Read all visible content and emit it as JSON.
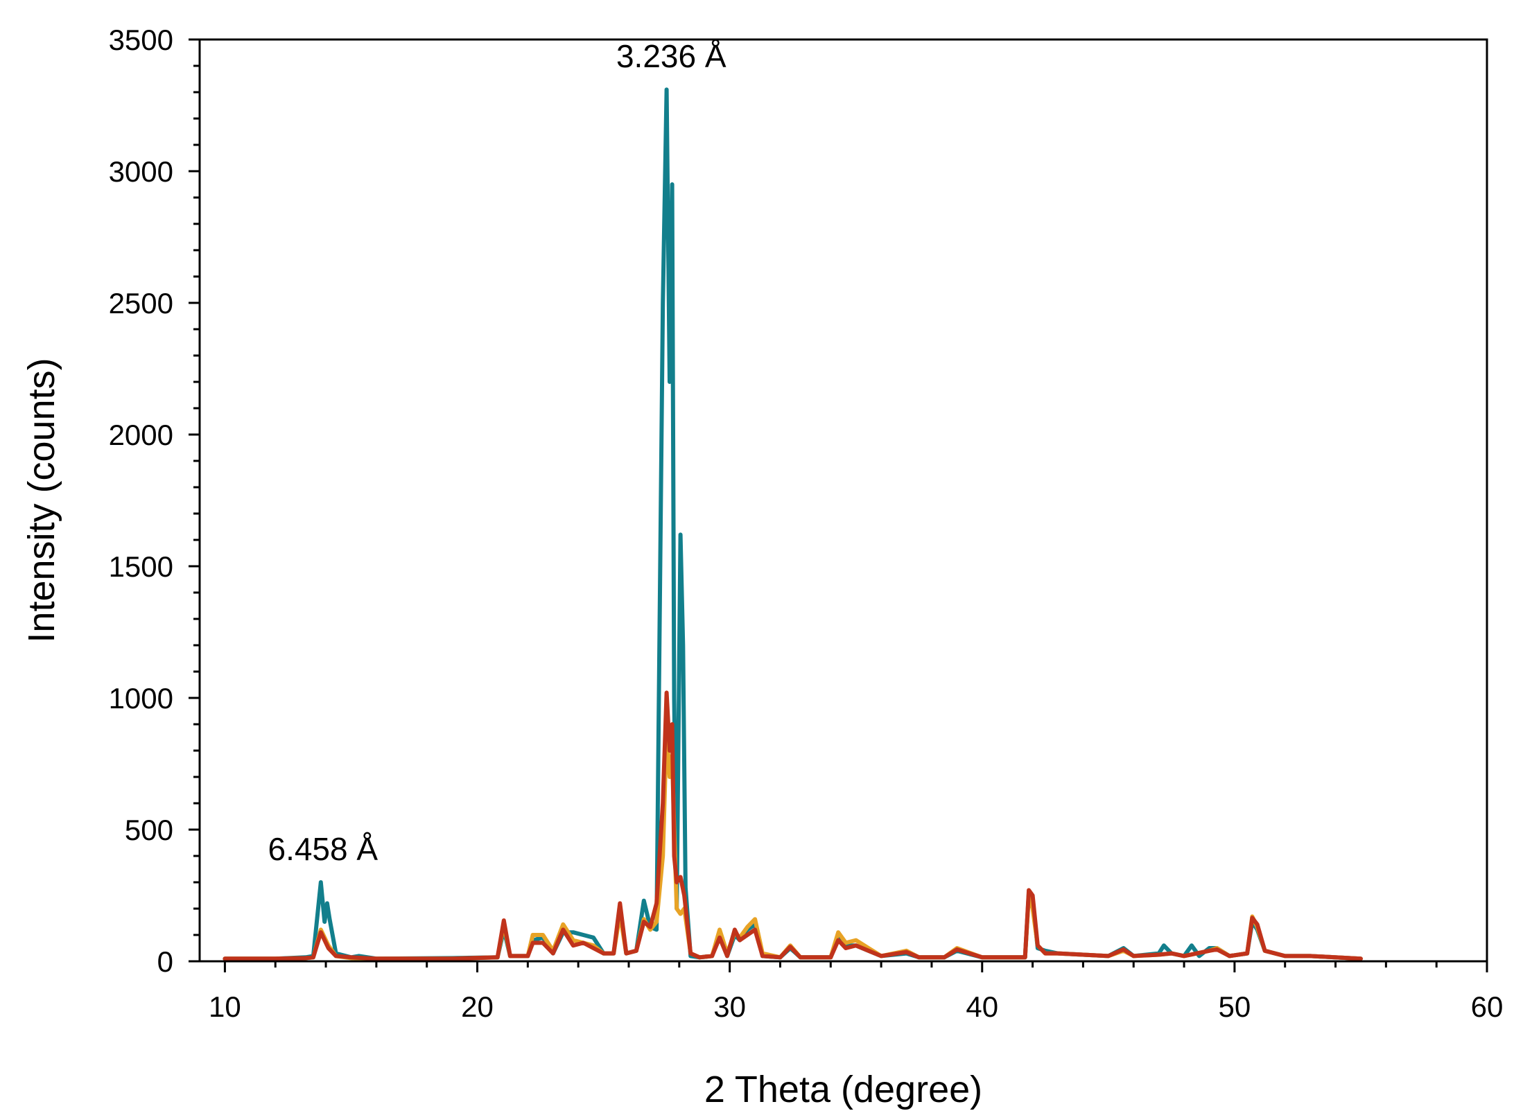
{
  "chart_data": {
    "type": "line",
    "title": "",
    "xlabel": "2 Theta (degree)",
    "ylabel": "Intensity (counts)",
    "xlim": [
      9,
      60
    ],
    "ylim": [
      0,
      3500
    ],
    "xticks": [
      10,
      20,
      30,
      40,
      50,
      60
    ],
    "yticks": [
      0,
      500,
      1000,
      1500,
      2000,
      2500,
      3000,
      3500
    ],
    "grid": false,
    "legend": "none",
    "annotations": [
      {
        "text": "3.236 Å",
        "x": 27.6,
        "y": 3310
      },
      {
        "text": "6.458 Å",
        "x": 13.8,
        "y": 300
      }
    ],
    "series": [
      {
        "color": "#127f8c",
        "x": [
          10,
          12,
          13.2,
          13.5,
          13.8,
          13.95,
          14.05,
          14.15,
          14.4,
          15,
          15.3,
          16,
          19,
          20.8,
          21.05,
          21.3,
          22,
          22.2,
          22.6,
          23,
          23.4,
          23.8,
          24.2,
          24.6,
          25,
          25.4,
          25.65,
          25.9,
          26.3,
          26.6,
          26.85,
          27.1,
          27.35,
          27.5,
          27.62,
          27.72,
          27.8,
          27.9,
          28.05,
          28.15,
          28.25,
          28.45,
          28.8,
          29.3,
          29.6,
          29.9,
          30.2,
          30.4,
          30.7,
          31,
          31.3,
          32,
          32.4,
          32.8,
          34,
          34.3,
          34.6,
          35,
          35.5,
          36,
          37,
          37.5,
          38.5,
          39,
          40,
          41.7,
          41.85,
          42,
          42.2,
          42.5,
          43,
          45,
          45.6,
          46,
          47,
          47.2,
          47.5,
          48,
          48.3,
          48.6,
          49,
          49.3,
          49.8,
          50.5,
          50.7,
          50.9,
          51.2,
          52,
          53,
          55
        ],
        "y": [
          10,
          10,
          15,
          20,
          300,
          150,
          220,
          160,
          30,
          15,
          20,
          10,
          12,
          15,
          120,
          20,
          20,
          80,
          90,
          30,
          110,
          110,
          100,
          90,
          30,
          30,
          200,
          30,
          40,
          230,
          130,
          120,
          2500,
          3310,
          2200,
          2950,
          1000,
          200,
          1620,
          1200,
          280,
          20,
          15,
          20,
          100,
          20,
          100,
          80,
          120,
          140,
          20,
          15,
          50,
          15,
          15,
          90,
          60,
          60,
          40,
          20,
          30,
          15,
          15,
          40,
          15,
          15,
          260,
          230,
          50,
          40,
          30,
          20,
          50,
          20,
          30,
          60,
          30,
          20,
          60,
          20,
          50,
          50,
          20,
          30,
          150,
          120,
          40,
          20,
          20,
          10
        ]
      },
      {
        "color": "#e8a326",
        "x": [
          10,
          12,
          13.2,
          13.5,
          13.8,
          14.1,
          14.4,
          15,
          16,
          19,
          20.8,
          21.05,
          21.3,
          22,
          22.2,
          22.6,
          23,
          23.4,
          23.8,
          24.2,
          24.6,
          25,
          25.4,
          25.65,
          25.9,
          26.3,
          26.6,
          26.85,
          27.1,
          27.35,
          27.5,
          27.62,
          27.72,
          27.8,
          27.9,
          28.05,
          28.2,
          28.45,
          28.8,
          29.3,
          29.6,
          29.9,
          30.2,
          30.4,
          30.7,
          31,
          31.3,
          32,
          32.4,
          32.8,
          34,
          34.3,
          34.6,
          35,
          35.5,
          36,
          37,
          37.5,
          38.5,
          39,
          40,
          41.7,
          41.85,
          42,
          42.2,
          42.5,
          43,
          45,
          45.6,
          46,
          47,
          47.5,
          48,
          49,
          49.3,
          49.8,
          50.5,
          50.7,
          50.9,
          51.2,
          52,
          53,
          55
        ],
        "y": [
          10,
          10,
          12,
          15,
          120,
          60,
          20,
          12,
          10,
          10,
          15,
          140,
          20,
          20,
          100,
          100,
          40,
          140,
          80,
          70,
          60,
          30,
          30,
          180,
          30,
          40,
          160,
          120,
          150,
          400,
          880,
          700,
          780,
          500,
          200,
          180,
          200,
          30,
          15,
          20,
          120,
          30,
          110,
          90,
          130,
          160,
          30,
          15,
          60,
          15,
          15,
          110,
          70,
          80,
          50,
          20,
          40,
          15,
          15,
          50,
          15,
          15,
          250,
          200,
          60,
          30,
          30,
          20,
          40,
          20,
          25,
          30,
          20,
          40,
          50,
          20,
          30,
          170,
          130,
          40,
          20,
          20,
          10
        ]
      },
      {
        "color": "#c0331b",
        "x": [
          10,
          12,
          13.2,
          13.5,
          13.8,
          14.1,
          14.4,
          15,
          16,
          19,
          20.8,
          21.05,
          21.3,
          22,
          22.2,
          22.6,
          23,
          23.4,
          23.8,
          24.2,
          24.6,
          25,
          25.4,
          25.65,
          25.9,
          26.3,
          26.6,
          26.85,
          27.1,
          27.35,
          27.5,
          27.62,
          27.72,
          27.8,
          27.9,
          28.05,
          28.2,
          28.45,
          28.8,
          29.3,
          29.6,
          29.9,
          30.2,
          30.4,
          30.7,
          31,
          31.3,
          32,
          32.4,
          32.8,
          34,
          34.3,
          34.6,
          35,
          35.5,
          36,
          37,
          37.5,
          38.5,
          39,
          40,
          41.7,
          41.85,
          42,
          42.2,
          42.5,
          43,
          45,
          45.6,
          46,
          47,
          47.5,
          48,
          49,
          49.3,
          49.8,
          50.5,
          50.7,
          50.9,
          51.2,
          52,
          53,
          55
        ],
        "y": [
          10,
          10,
          12,
          15,
          110,
          50,
          20,
          15,
          10,
          10,
          15,
          155,
          20,
          20,
          70,
          70,
          30,
          120,
          60,
          70,
          50,
          30,
          30,
          220,
          30,
          40,
          150,
          130,
          220,
          600,
          1020,
          800,
          900,
          400,
          300,
          320,
          250,
          30,
          15,
          20,
          90,
          20,
          120,
          80,
          100,
          120,
          20,
          15,
          55,
          15,
          15,
          80,
          50,
          60,
          40,
          20,
          35,
          15,
          15,
          45,
          15,
          15,
          270,
          250,
          60,
          30,
          30,
          20,
          45,
          20,
          25,
          30,
          20,
          40,
          45,
          20,
          30,
          165,
          140,
          40,
          20,
          20,
          10
        ]
      }
    ]
  }
}
